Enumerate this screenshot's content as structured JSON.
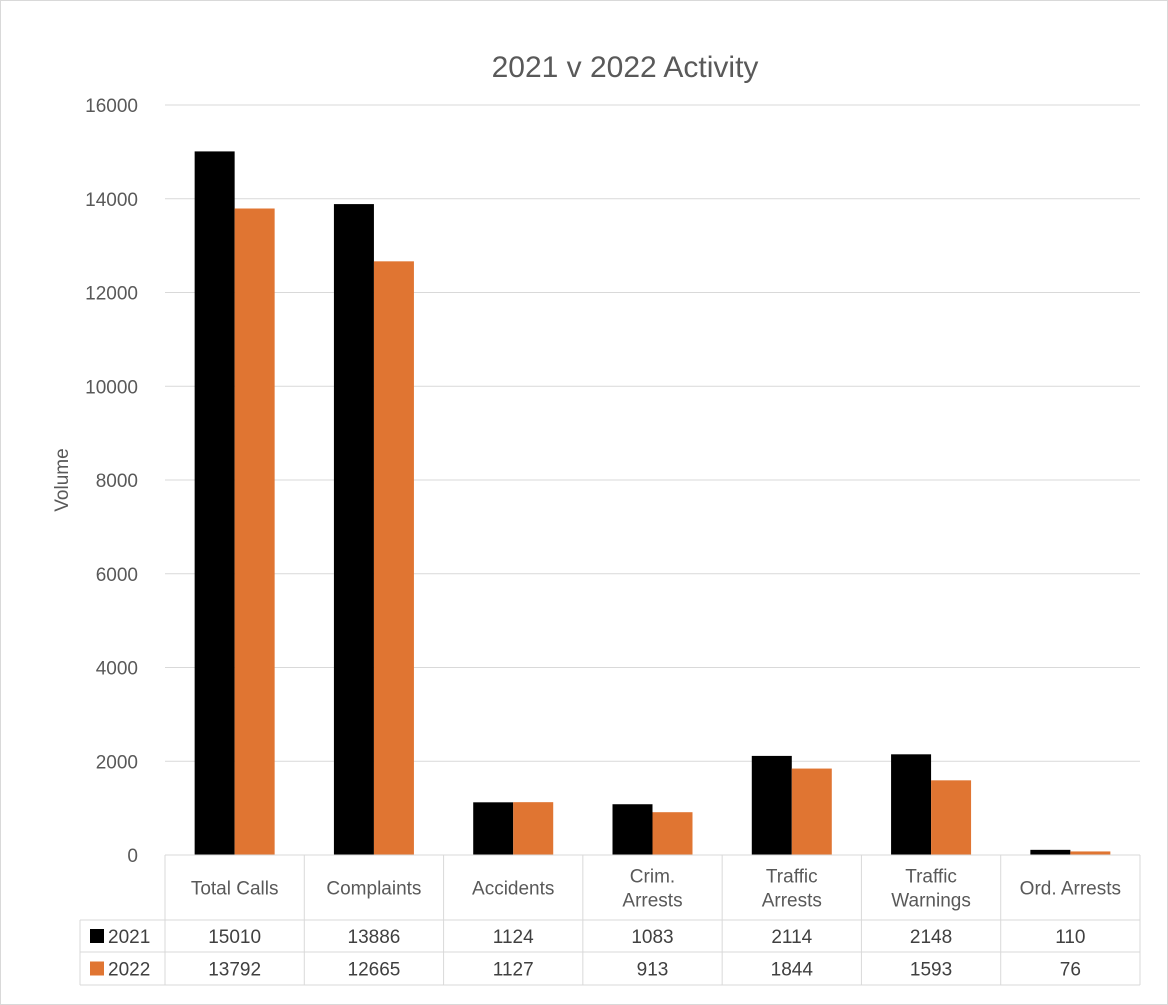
{
  "chart_data": {
    "type": "bar",
    "title": "2021 v 2022 Activity",
    "xlabel": "",
    "ylabel": "Volume",
    "ylim": [
      0,
      16000
    ],
    "yticks": [
      0,
      2000,
      4000,
      6000,
      8000,
      10000,
      12000,
      14000,
      16000
    ],
    "grid": true,
    "legend": "data-table",
    "categories": [
      [
        "Total Calls"
      ],
      [
        "Complaints"
      ],
      [
        "Accidents"
      ],
      [
        "Crim.",
        "Arrests"
      ],
      [
        "Traffic",
        "Arrests"
      ],
      [
        "Traffic",
        "Warnings"
      ],
      [
        "Ord. Arrests"
      ]
    ],
    "series": [
      {
        "name": "2021",
        "color": "#000000",
        "values": [
          15010,
          13886,
          1124,
          1083,
          2114,
          2148,
          110
        ]
      },
      {
        "name": "2022",
        "color": "#e07532",
        "values": [
          13792,
          12665,
          1127,
          913,
          1844,
          1593,
          76
        ]
      }
    ]
  }
}
